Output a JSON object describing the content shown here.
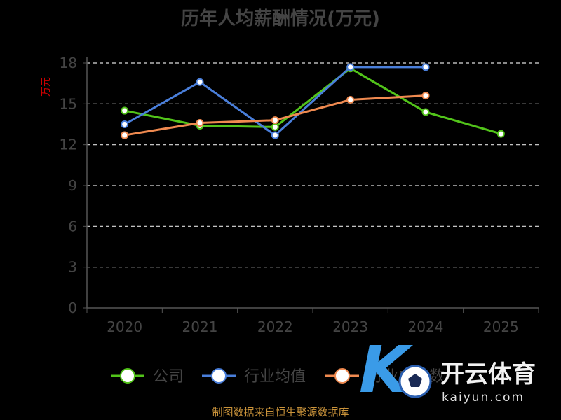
{
  "chart_data": {
    "type": "line",
    "title": "历年人均薪酬情况(万元)",
    "ylabel": "万元",
    "xlabel": "",
    "ylim": [
      0,
      18
    ],
    "yticks": [
      0,
      3,
      6,
      9,
      12,
      15,
      18
    ],
    "categories": [
      "2020",
      "2021",
      "2022",
      "2023",
      "2024",
      "2025"
    ],
    "grid": true,
    "grid_style": "dashed",
    "legend_position": "bottom",
    "series": [
      {
        "name": "公司",
        "color": "#52c41a",
        "values": [
          14.5,
          13.4,
          13.3,
          17.6,
          14.4,
          12.8
        ]
      },
      {
        "name": "行业均值",
        "color": "#4a7fdb",
        "values": [
          13.5,
          16.6,
          12.7,
          17.7,
          17.7,
          null
        ]
      },
      {
        "name": "行业中位数",
        "color": "#f08a50",
        "values": [
          12.7,
          13.6,
          13.8,
          15.3,
          15.6,
          null
        ]
      }
    ]
  },
  "source_text": "制图数据来自恒生聚源数据库",
  "watermark": {
    "brand": "开云体育",
    "url": "kaiyun.com"
  }
}
